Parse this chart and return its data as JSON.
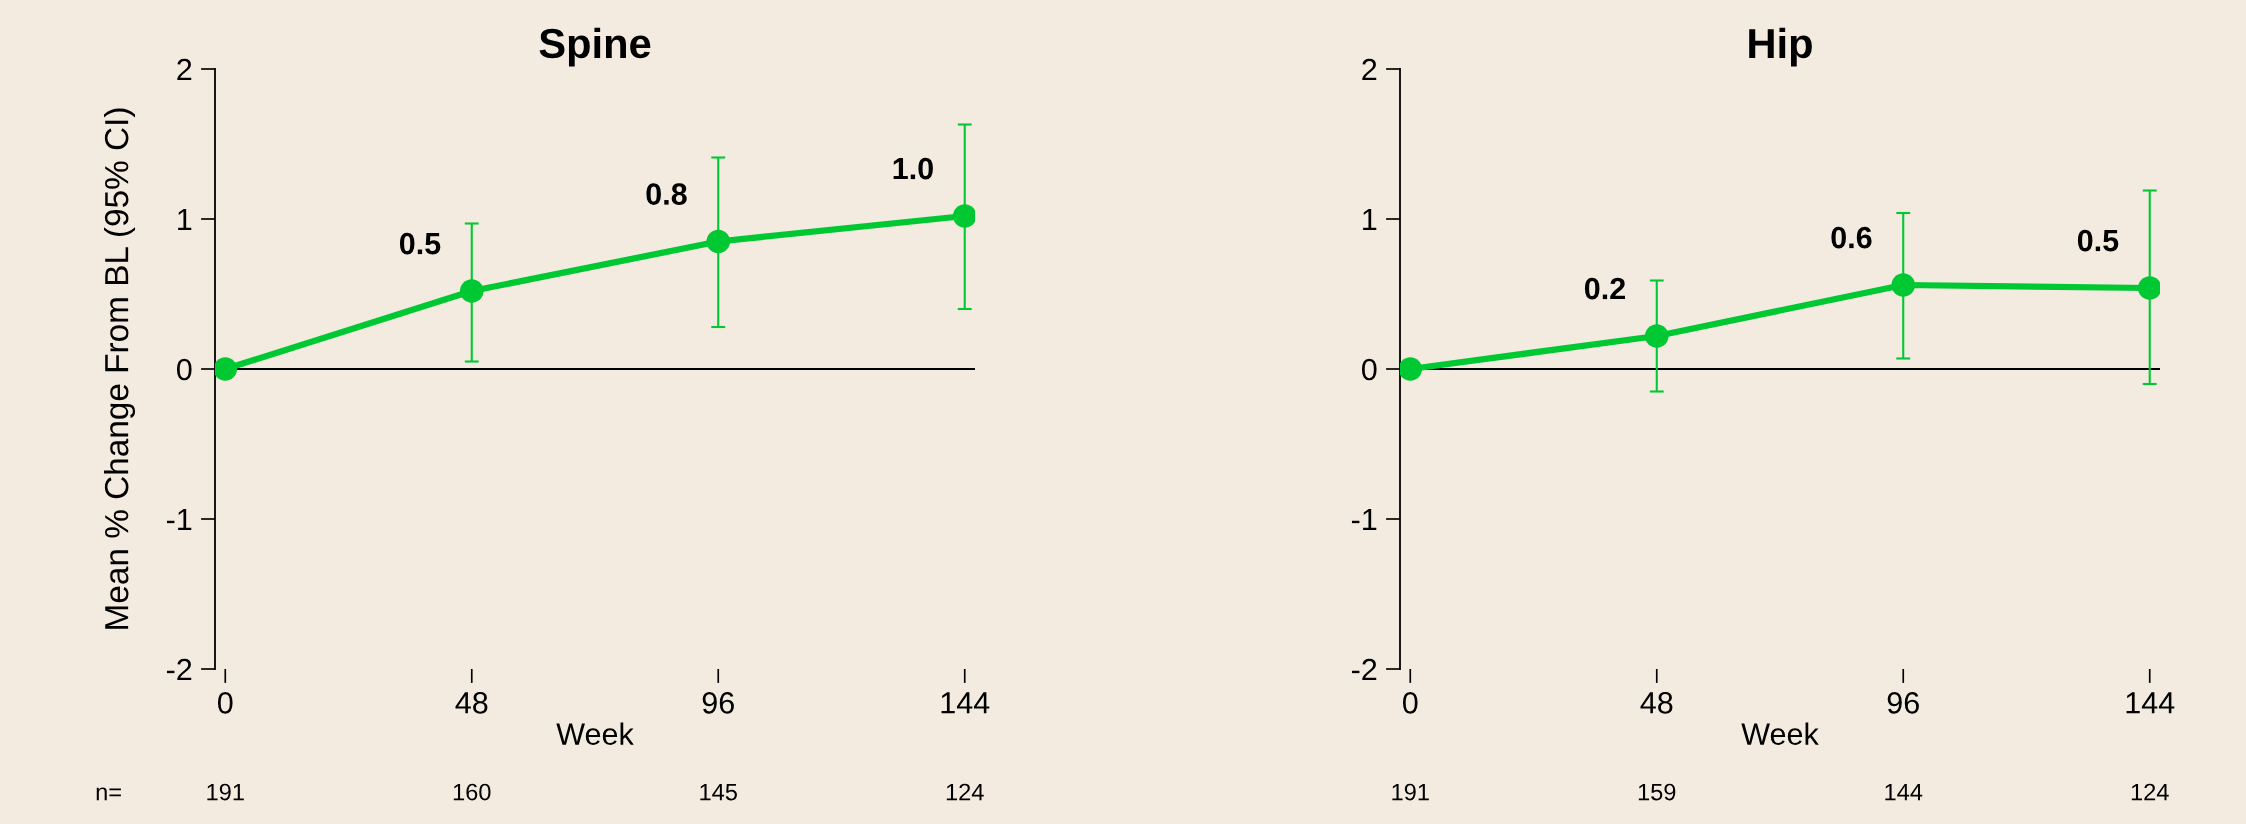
{
  "chart_data": [
    {
      "type": "line",
      "title": "Spine",
      "xlabel": "Week",
      "ylabel": "Mean % Change From BL (95% CI)",
      "x": [
        0,
        48,
        96,
        144
      ],
      "xlim": [
        -2,
        146
      ],
      "xticks": [
        0,
        48,
        96,
        144
      ],
      "ylim": [
        -2,
        2
      ],
      "yticks": [
        -2,
        -1,
        0,
        1,
        2
      ],
      "series": [
        {
          "color": "#00c832",
          "values": [
            0,
            0.52,
            0.85,
            1.02
          ],
          "errors": [
            null,
            [
              0.05,
              0.97
            ],
            [
              0.28,
              1.41
            ],
            [
              0.4,
              1.63
            ]
          ],
          "value_labels": [
            null,
            "0.5",
            "0.8",
            "1.0"
          ]
        }
      ],
      "marker": "circle",
      "line_style": "solid",
      "grid": false,
      "legend": false,
      "ref_lines": [
        {
          "axis": "y",
          "value": 0,
          "color": "#000000"
        }
      ],
      "annotations": [
        "n=",
        "191",
        "160",
        "145",
        "124"
      ]
    },
    {
      "type": "line",
      "title": "Hip",
      "xlabel": "Week",
      "x": [
        0,
        48,
        96,
        144
      ],
      "xlim": [
        -2,
        146
      ],
      "xticks": [
        0,
        48,
        96,
        144
      ],
      "ylim": [
        -2,
        2
      ],
      "yticks": [
        -2,
        -1,
        0,
        1,
        2
      ],
      "series": [
        {
          "color": "#00c832",
          "values": [
            0,
            0.22,
            0.56,
            0.54
          ],
          "errors": [
            null,
            [
              -0.15,
              0.59
            ],
            [
              0.07,
              1.04
            ],
            [
              -0.1,
              1.19
            ]
          ],
          "value_labels": [
            null,
            "0.2",
            "0.6",
            "0.5"
          ]
        }
      ],
      "marker": "circle",
      "line_style": "solid",
      "grid": false,
      "legend": false,
      "ref_lines": [
        {
          "axis": "y",
          "value": 0,
          "color": "#000000"
        }
      ],
      "annotations": [
        "191",
        "159",
        "144",
        "124"
      ]
    }
  ]
}
